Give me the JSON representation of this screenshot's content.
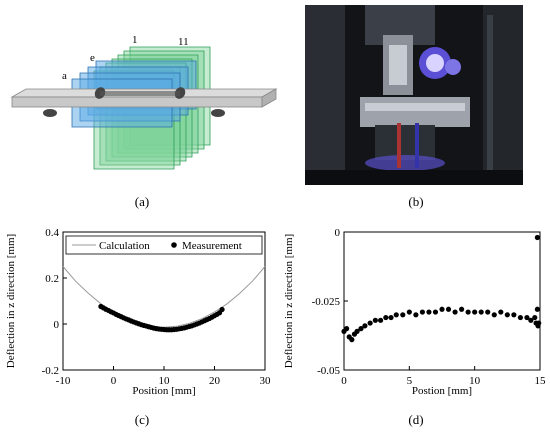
{
  "panel_a": {
    "caption": "(a)",
    "labels": {
      "a": "a",
      "e": "e",
      "one": "1",
      "eleven": "11"
    }
  },
  "panel_b": {
    "caption": "(b)",
    "description_icon": "test-rig-photo"
  },
  "colors": {
    "beam": "#c8c8c8",
    "plane_green": "#7fd39a",
    "plane_blue": "#5aa9e6",
    "curve": "#9a9a9a",
    "marker": "#000000"
  },
  "chart_data": [
    {
      "id": "c",
      "caption": "(c)",
      "type": "line",
      "xlabel": "Position [mm]",
      "ylabel": "Deflection in z direction [mm]",
      "xlim": [
        -10,
        30
      ],
      "ylim": [
        -0.2,
        0.4
      ],
      "xticks": [
        "-10",
        "0",
        "10",
        "20",
        "30"
      ],
      "yticks": [
        "-0.2",
        "0",
        "0.2",
        "0.4"
      ],
      "legend_position": "top",
      "series": [
        {
          "name": "Calculation",
          "kind": "line",
          "x": [
            -10,
            -7.5,
            -5,
            -2.5,
            0,
            2.5,
            5,
            7.5,
            10,
            12.5,
            15,
            17.5,
            20,
            22.5,
            25,
            27.5,
            30
          ],
          "y": [
            0.25,
            0.186,
            0.134,
            0.088,
            0.052,
            0.023,
            0.003,
            -0.01,
            -0.014,
            -0.01,
            0.003,
            0.023,
            0.052,
            0.088,
            0.134,
            0.186,
            0.25
          ]
        },
        {
          "name": "Measurement",
          "kind": "scatter",
          "x": [
            -2.5,
            -2,
            -1.5,
            -1,
            -0.5,
            0,
            0.5,
            1,
            1.5,
            2,
            2.5,
            3,
            3.5,
            4,
            4.5,
            5,
            5.5,
            6,
            6.5,
            7,
            7.5,
            8,
            8.5,
            9,
            9.5,
            10,
            10.5,
            11,
            11.5,
            12,
            12.5,
            13,
            13.5,
            14,
            14.5,
            15,
            15.5,
            16,
            16.5,
            17,
            17.5,
            18,
            18.5,
            19,
            19.5,
            20,
            20.5,
            21,
            21.5
          ],
          "y": [
            0.076,
            0.07,
            0.064,
            0.059,
            0.053,
            0.048,
            0.042,
            0.037,
            0.032,
            0.027,
            0.022,
            0.018,
            0.013,
            0.009,
            0.005,
            0.001,
            -0.003,
            -0.006,
            -0.009,
            -0.012,
            -0.015,
            -0.018,
            -0.02,
            -0.022,
            -0.023,
            -0.024,
            -0.025,
            -0.025,
            -0.025,
            -0.024,
            -0.023,
            -0.021,
            -0.019,
            -0.017,
            -0.014,
            -0.011,
            -0.008,
            -0.004,
            0.0,
            0.004,
            0.009,
            0.014,
            0.019,
            0.024,
            0.03,
            0.036,
            0.042,
            0.049,
            0.063
          ]
        }
      ]
    },
    {
      "id": "d",
      "caption": "(d)",
      "type": "scatter",
      "xlabel": "Postion [mm]",
      "ylabel": "Deflection in z direction [mm]",
      "xlim": [
        0,
        15
      ],
      "ylim": [
        -0.05,
        0
      ],
      "xticks": [
        "0",
        "5",
        "10",
        "15"
      ],
      "yticks": [
        "0",
        "-0.025",
        "-0.05"
      ],
      "series": [
        {
          "name": "",
          "kind": "scatter",
          "x": [
            0.0,
            0.2,
            0.4,
            0.6,
            0.8,
            1.0,
            1.3,
            1.6,
            2.0,
            2.4,
            2.8,
            3.2,
            3.6,
            4.0,
            4.5,
            5.0,
            5.5,
            6.0,
            6.5,
            7.0,
            7.5,
            8.0,
            8.5,
            9.0,
            9.5,
            10.0,
            10.5,
            11.0,
            11.5,
            12.0,
            12.5,
            13.0,
            13.5,
            14.0,
            14.3,
            14.6,
            14.7,
            14.8,
            14.85,
            14.9,
            14.8
          ],
          "y": [
            -0.036,
            -0.035,
            -0.038,
            -0.039,
            -0.037,
            -0.036,
            -0.035,
            -0.034,
            -0.033,
            -0.032,
            -0.032,
            -0.031,
            -0.031,
            -0.03,
            -0.03,
            -0.029,
            -0.03,
            -0.029,
            -0.029,
            -0.029,
            -0.028,
            -0.028,
            -0.029,
            -0.028,
            -0.029,
            -0.029,
            -0.029,
            -0.029,
            -0.03,
            -0.029,
            -0.03,
            -0.03,
            -0.031,
            -0.031,
            -0.032,
            -0.031,
            -0.033,
            -0.028,
            -0.034,
            -0.033,
            -0.002
          ]
        }
      ]
    }
  ]
}
